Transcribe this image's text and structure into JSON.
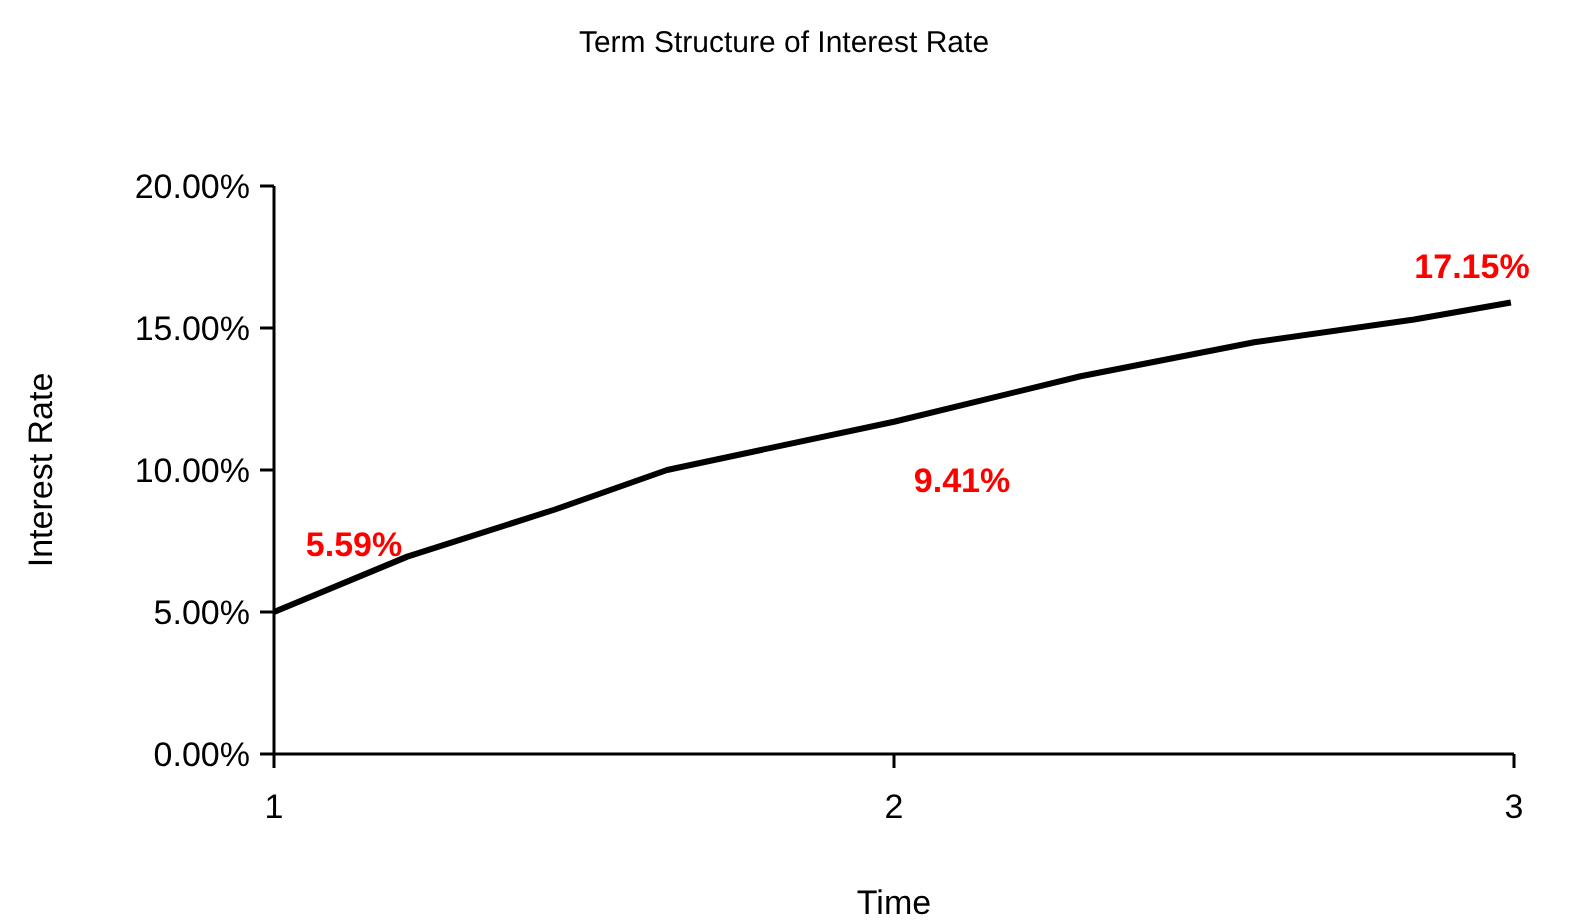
{
  "chart_data": {
    "type": "line",
    "title": "Term Structure of Interest Rate",
    "xlabel": "Time",
    "ylabel": "Interest Rate",
    "x": [
      1,
      1.215,
      1.452,
      1.634,
      2,
      2.301,
      2.581,
      2.839,
      2.995
    ],
    "series": [
      {
        "color": "#000000",
        "values": [
          5.0,
          6.95,
          8.6,
          10.0,
          11.7,
          13.3,
          14.5,
          15.3,
          15.9
        ]
      }
    ],
    "xlim": [
      1,
      3
    ],
    "xticks": [
      1,
      2,
      3
    ],
    "ylim": [
      0,
      20
    ],
    "yticks": [
      {
        "value": 0,
        "label": "0.00%"
      },
      {
        "value": 5,
        "label": "5.00%"
      },
      {
        "value": 10,
        "label": "10.00%"
      },
      {
        "value": 15,
        "label": "15.00%"
      },
      {
        "value": 20,
        "label": "20.00%"
      }
    ],
    "grid": false,
    "marker": "none",
    "line_style": "solid",
    "annotations": [
      "5.59%",
      "9.41%",
      "17.15%"
    ]
  }
}
